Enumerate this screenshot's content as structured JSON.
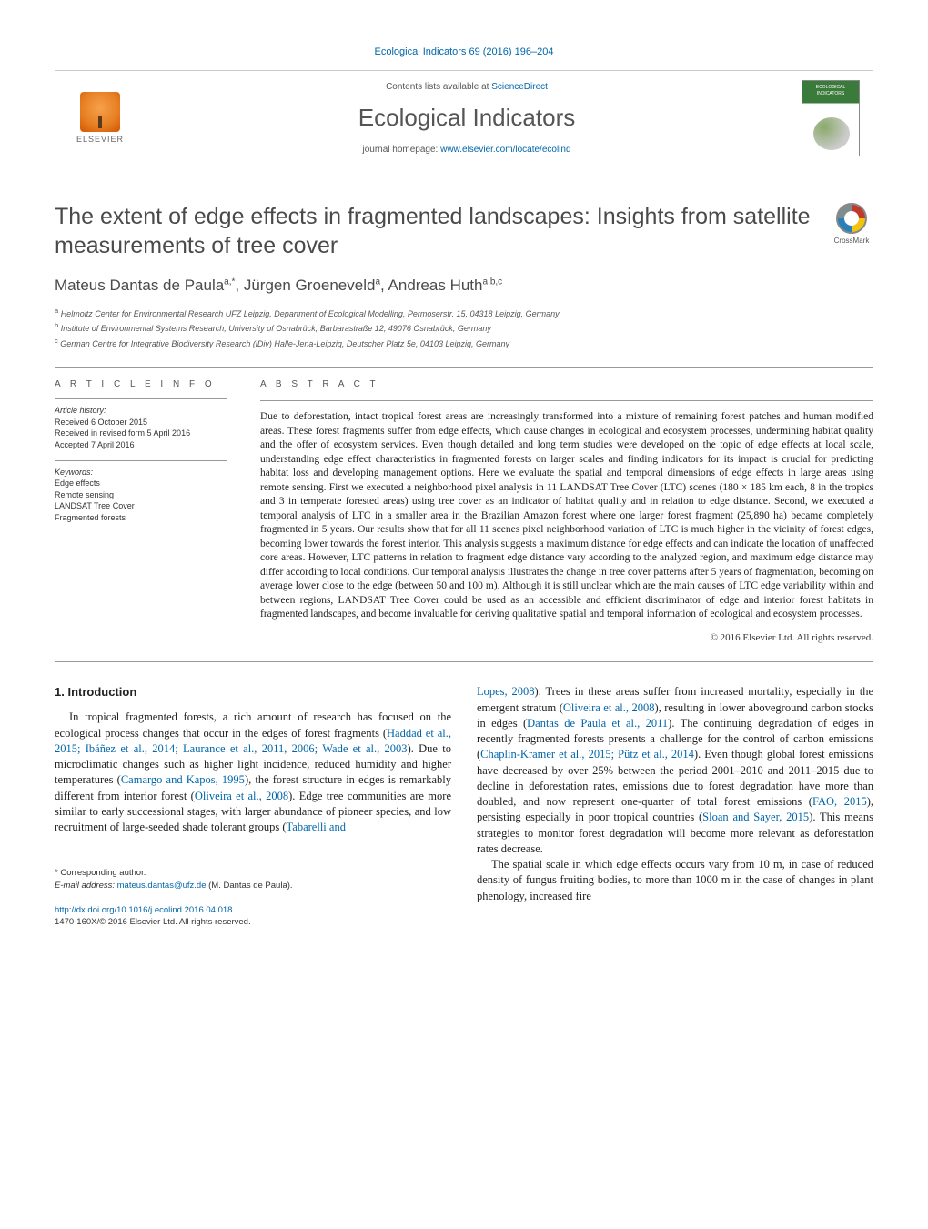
{
  "journal_ref": "Ecological Indicators 69 (2016) 196–204",
  "header": {
    "contents_prefix": "Contents lists available at ",
    "contents_link": "ScienceDirect",
    "journal_name": "Ecological Indicators",
    "homepage_prefix": "journal homepage: ",
    "homepage_link": "www.elsevier.com/locate/ecolind",
    "elsevier_label": "ELSEVIER",
    "cover_label": "ECOLOGICAL INDICATORS"
  },
  "title": "The extent of edge effects in fragmented landscapes: Insights from satellite measurements of tree cover",
  "crossmark_label": "CrossMark",
  "authors_html": "Mateus Dantas de Paula",
  "author_sup1": "a,*",
  "author_sep1": ", Jürgen Groeneveld",
  "author_sup2": "a",
  "author_sep2": ", Andreas Huth",
  "author_sup3": "a,b,c",
  "affiliations": {
    "a": "Helmoltz Center for Environmental Research UFZ Leipzig, Department of Ecological Modelling, Permoserstr. 15, 04318 Leipzig, Germany",
    "b": "Institute of Environmental Systems Research, University of Osnabrück, Barbarastraße 12, 49076 Osnabrück, Germany",
    "c": "German Centre for Integrative Biodiversity Research (iDiv) Halle-Jena-Leipzig, Deutscher Platz 5e, 04103 Leipzig, Germany"
  },
  "article_info": {
    "head": "A R T I C L E    I N F O",
    "history_head": "Article history:",
    "received": "Received 6 October 2015",
    "revised": "Received in revised form 5 April 2016",
    "accepted": "Accepted 7 April 2016",
    "keywords_head": "Keywords:",
    "keywords": [
      "Edge effects",
      "Remote sensing",
      "LANDSAT Tree Cover",
      "Fragmented forests"
    ]
  },
  "abstract": {
    "head": "A B S T R A C T",
    "text": "Due to deforestation, intact tropical forest areas are increasingly transformed into a mixture of remaining forest patches and human modified areas. These forest fragments suffer from edge effects, which cause changes in ecological and ecosystem processes, undermining habitat quality and the offer of ecosystem services. Even though detailed and long term studies were developed on the topic of edge effects at local scale, understanding edge effect characteristics in fragmented forests on larger scales and finding indicators for its impact is crucial for predicting habitat loss and developing management options. Here we evaluate the spatial and temporal dimensions of edge effects in large areas using remote sensing. First we executed a neighborhood pixel analysis in 11 LANDSAT Tree Cover (LTC) scenes (180 × 185 km each, 8 in the tropics and 3 in temperate forested areas) using tree cover as an indicator of habitat quality and in relation to edge distance. Second, we executed a temporal analysis of LTC in a smaller area in the Brazilian Amazon forest where one larger forest fragment (25,890 ha) became completely fragmented in 5 years. Our results show that for all 11 scenes pixel neighborhood variation of LTC is much higher in the vicinity of forest edges, becoming lower towards the forest interior. This analysis suggests a maximum distance for edge effects and can indicate the location of unaffected core areas. However, LTC patterns in relation to fragment edge distance vary according to the analyzed region, and maximum edge distance may differ according to local conditions. Our temporal analysis illustrates the change in tree cover patterns after 5 years of fragmentation, becoming on average lower close to the edge (between 50 and 100 m). Although it is still unclear which are the main causes of LTC edge variability within and between regions, LANDSAT Tree Cover could be used as an accessible and efficient discriminator of edge and interior forest habitats in fragmented landscapes, and become invaluable for deriving qualitative spatial and temporal information of ecological and ecosystem processes.",
    "copyright": "© 2016 Elsevier Ltd. All rights reserved."
  },
  "section1": {
    "head": "1. Introduction",
    "p1_a": "In tropical fragmented forests, a rich amount of research has focused on the ecological process changes that occur in the edges of forest fragments (",
    "p1_cite1": "Haddad et al., 2015; Ibáñez et al., 2014; Laurance et al., 2011, 2006; Wade et al., 2003",
    "p1_b": "). Due to microclimatic changes such as higher light incidence, reduced humidity and higher temperatures (",
    "p1_cite2": "Camargo and Kapos, 1995",
    "p1_c": "), the forest structure in edges is remarkably different from interior forest (",
    "p1_cite3": "Oliveira et al., 2008",
    "p1_d": "). Edge tree communities are more similar to early successional stages, with larger abundance of pioneer species, and low recruitment of large-seeded shade tolerant groups (",
    "p1_cite4": "Tabarelli and",
    "p2_cite1": "Lopes, 2008",
    "p2_a": "). Trees in these areas suffer from increased mortality, especially in the emergent stratum (",
    "p2_cite2": "Oliveira et al., 2008",
    "p2_b": "), resulting in lower aboveground carbon stocks in edges (",
    "p2_cite3": "Dantas de Paula et al., 2011",
    "p2_c": "). The continuing degradation of edges in recently fragmented forests presents a challenge for the control of carbon emissions (",
    "p2_cite4": "Chaplin-Kramer et al., 2015; Pütz et al., 2014",
    "p2_d": "). Even though global forest emissions have decreased by over 25% between the period 2001–2010 and 2011–2015 due to decline in deforestation rates, emissions due to forest degradation have more than doubled, and now represent one-quarter of total forest emissions (",
    "p2_cite5": "FAO, 2015",
    "p2_e": "), persisting especially in poor tropical countries (",
    "p2_cite6": "Sloan and Sayer, 2015",
    "p2_f": "). This means strategies to monitor forest degradation will become more relevant as deforestation rates decrease.",
    "p3": "The spatial scale in which edge effects occurs vary from 10 m, in case of reduced density of fungus fruiting bodies, to more than 1000 m in the case of changes in plant phenology, increased fire"
  },
  "footnote": {
    "corr": "Corresponding author.",
    "email_label": "E-mail address:",
    "email": "mateus.dantas@ufz.de",
    "email_suffix": " (M. Dantas de Paula)."
  },
  "footer": {
    "doi": "http://dx.doi.org/10.1016/j.ecolind.2016.04.018",
    "issn": "1470-160X/© 2016 Elsevier Ltd. All rights reserved."
  },
  "colors": {
    "link": "#0066aa",
    "heading": "#4a4a4a",
    "body": "#222222",
    "rule": "#999999"
  }
}
